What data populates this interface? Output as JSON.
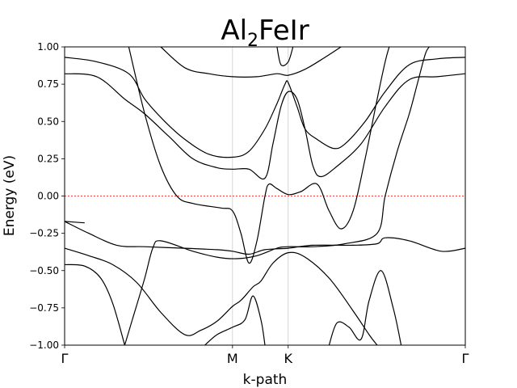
{
  "chart_data": {
    "type": "line",
    "title_main": "Al",
    "title_sub": "2",
    "title_rest": "FeIr",
    "xlabel": "k-path",
    "ylabel": "Energy (eV)",
    "ylim": [
      -1.0,
      1.0
    ],
    "xlim": [
      0,
      1
    ],
    "yticks": [
      -1.0,
      -0.75,
      -0.5,
      -0.25,
      0.0,
      0.25,
      0.5,
      0.75,
      1.0
    ],
    "ytick_labels": [
      "−1.00",
      "−0.75",
      "−0.50",
      "−0.25",
      "0.00",
      "0.25",
      "0.50",
      "0.75",
      "1.00"
    ],
    "kpoints": [
      {
        "label": "Γ",
        "x": 0.0
      },
      {
        "label": "M",
        "x": 0.419
      },
      {
        "label": "K",
        "x": 0.558
      },
      {
        "label": "Γ",
        "x": 1.0
      }
    ],
    "fermi_level": 0.0,
    "colors": {
      "bands": "#000000",
      "fermi": "#ff0000",
      "kline": "#cccccc"
    },
    "series": [
      {
        "values": [
          [
            0.0,
            -0.46
          ],
          [
            0.05,
            -0.47
          ],
          [
            0.09,
            -0.55
          ],
          [
            0.12,
            -0.72
          ],
          [
            0.15,
            -1.0
          ]
        ]
      },
      {
        "values": [
          [
            0.0,
            -0.35
          ],
          [
            0.06,
            -0.4
          ],
          [
            0.12,
            -0.46
          ],
          [
            0.18,
            -0.58
          ],
          [
            0.24,
            -0.78
          ],
          [
            0.3,
            -0.93
          ],
          [
            0.34,
            -0.9
          ],
          [
            0.38,
            -0.84
          ],
          [
            0.419,
            -0.74
          ],
          [
            0.44,
            -0.7
          ],
          [
            0.47,
            -0.61
          ],
          [
            0.49,
            -0.57
          ],
          [
            0.52,
            -0.45
          ],
          [
            0.558,
            -0.38
          ],
          [
            0.6,
            -0.41
          ],
          [
            0.66,
            -0.55
          ],
          [
            0.72,
            -0.77
          ],
          [
            0.76,
            -0.93
          ],
          [
            0.78,
            -1.0
          ]
        ]
      },
      {
        "values": [
          [
            0.0,
            -0.17
          ],
          [
            0.06,
            -0.25
          ],
          [
            0.13,
            -0.33
          ],
          [
            0.2,
            -0.34
          ],
          [
            0.3,
            -0.35
          ],
          [
            0.38,
            -0.36
          ],
          [
            0.419,
            -0.37
          ],
          [
            0.46,
            -0.39
          ],
          [
            0.5,
            -0.36
          ],
          [
            0.558,
            -0.35
          ],
          [
            0.62,
            -0.33
          ],
          [
            0.72,
            -0.33
          ],
          [
            0.78,
            -0.32
          ],
          [
            0.8,
            -0.28
          ],
          [
            0.86,
            -0.3
          ],
          [
            0.94,
            -0.37
          ],
          [
            1.0,
            -0.35
          ]
        ]
      },
      {
        "values": [
          [
            0.0,
            -0.17
          ],
          [
            0.05,
            -0.18
          ]
        ]
      },
      {
        "values": [
          [
            0.15,
            -1.0
          ],
          [
            0.17,
            -0.82
          ],
          [
            0.2,
            -0.55
          ],
          [
            0.22,
            -0.35
          ],
          [
            0.24,
            -0.3
          ],
          [
            0.32,
            -0.37
          ],
          [
            0.38,
            -0.41
          ],
          [
            0.43,
            -0.42
          ],
          [
            0.48,
            -0.4
          ],
          [
            0.53,
            -0.35
          ],
          [
            0.558,
            -0.34
          ],
          [
            0.62,
            -0.34
          ],
          [
            0.7,
            -0.32
          ],
          [
            0.78,
            -0.25
          ],
          [
            0.8,
            0.0
          ],
          [
            0.83,
            0.3
          ],
          [
            0.86,
            0.55
          ],
          [
            0.88,
            0.75
          ],
          [
            0.9,
            0.95
          ],
          [
            0.91,
            1.0
          ]
        ]
      },
      {
        "values": [
          [
            0.16,
            1.0
          ],
          [
            0.2,
            0.55
          ],
          [
            0.24,
            0.2
          ],
          [
            0.28,
            0.0
          ],
          [
            0.32,
            -0.05
          ],
          [
            0.39,
            -0.08
          ],
          [
            0.419,
            -0.1
          ],
          [
            0.44,
            -0.25
          ],
          [
            0.46,
            -0.45
          ],
          [
            0.48,
            -0.3
          ],
          [
            0.5,
            0.0
          ],
          [
            0.51,
            0.08
          ],
          [
            0.53,
            0.05
          ],
          [
            0.558,
            0.01
          ],
          [
            0.59,
            0.03
          ],
          [
            0.63,
            0.08
          ],
          [
            0.66,
            -0.1
          ],
          [
            0.69,
            -0.22
          ],
          [
            0.72,
            -0.1
          ],
          [
            0.75,
            0.25
          ],
          [
            0.78,
            0.65
          ],
          [
            0.8,
            0.9
          ],
          [
            0.81,
            1.0
          ]
        ]
      },
      {
        "values": [
          [
            0.0,
            0.82
          ],
          [
            0.08,
            0.8
          ],
          [
            0.15,
            0.65
          ],
          [
            0.2,
            0.55
          ],
          [
            0.26,
            0.4
          ],
          [
            0.32,
            0.25
          ],
          [
            0.38,
            0.19
          ],
          [
            0.419,
            0.18
          ],
          [
            0.46,
            0.18
          ],
          [
            0.5,
            0.12
          ],
          [
            0.52,
            0.35
          ],
          [
            0.54,
            0.6
          ],
          [
            0.558,
            0.7
          ],
          [
            0.58,
            0.65
          ],
          [
            0.6,
            0.45
          ],
          [
            0.62,
            0.2
          ],
          [
            0.64,
            0.13
          ],
          [
            0.68,
            0.2
          ],
          [
            0.74,
            0.35
          ],
          [
            0.8,
            0.6
          ],
          [
            0.86,
            0.78
          ],
          [
            0.93,
            0.8
          ],
          [
            1.0,
            0.82
          ]
        ]
      },
      {
        "values": [
          [
            0.0,
            0.93
          ],
          [
            0.08,
            0.9
          ],
          [
            0.16,
            0.82
          ],
          [
            0.2,
            0.65
          ],
          [
            0.25,
            0.5
          ],
          [
            0.3,
            0.38
          ],
          [
            0.36,
            0.28
          ],
          [
            0.419,
            0.26
          ],
          [
            0.46,
            0.3
          ],
          [
            0.5,
            0.45
          ],
          [
            0.53,
            0.62
          ],
          [
            0.55,
            0.75
          ],
          [
            0.558,
            0.76
          ],
          [
            0.58,
            0.6
          ],
          [
            0.6,
            0.45
          ],
          [
            0.63,
            0.38
          ],
          [
            0.67,
            0.32
          ],
          [
            0.7,
            0.35
          ],
          [
            0.75,
            0.5
          ],
          [
            0.8,
            0.7
          ],
          [
            0.86,
            0.88
          ],
          [
            0.93,
            0.92
          ],
          [
            1.0,
            0.93
          ]
        ]
      },
      {
        "values": [
          [
            0.24,
            1.0
          ],
          [
            0.3,
            0.86
          ],
          [
            0.36,
            0.82
          ],
          [
            0.419,
            0.8
          ],
          [
            0.48,
            0.8
          ],
          [
            0.53,
            0.82
          ],
          [
            0.558,
            0.81
          ],
          [
            0.6,
            0.85
          ],
          [
            0.65,
            0.93
          ],
          [
            0.69,
            1.0
          ]
        ]
      },
      {
        "values": [
          [
            0.53,
            1.0
          ],
          [
            0.54,
            0.88
          ],
          [
            0.558,
            0.9
          ],
          [
            0.57,
            1.0
          ]
        ]
      },
      {
        "values": [
          [
            0.35,
            -1.0
          ],
          [
            0.38,
            -0.93
          ],
          [
            0.419,
            -0.88
          ],
          [
            0.45,
            -0.83
          ],
          [
            0.47,
            -0.67
          ],
          [
            0.49,
            -0.83
          ],
          [
            0.5,
            -1.0
          ]
        ]
      },
      {
        "values": [
          [
            0.66,
            -1.0
          ],
          [
            0.68,
            -0.85
          ],
          [
            0.71,
            -0.88
          ],
          [
            0.74,
            -0.96
          ],
          [
            0.76,
            -0.7
          ],
          [
            0.79,
            -0.5
          ],
          [
            0.82,
            -0.75
          ],
          [
            0.84,
            -1.0
          ]
        ]
      }
    ]
  }
}
